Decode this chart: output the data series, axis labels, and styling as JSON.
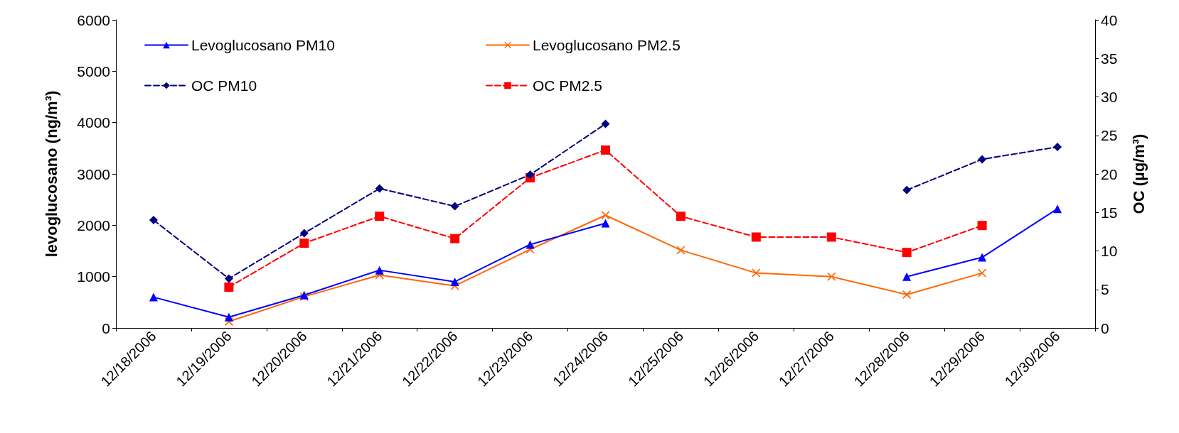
{
  "chart_data": {
    "type": "line",
    "ylabel": "levoglucosano (ng/m³)",
    "y2label": "OC (µg/m³)",
    "categories": [
      "12/18/2006",
      "12/19/2006",
      "12/20/2006",
      "12/21/2006",
      "12/22/2006",
      "12/23/2006",
      "12/24/2006",
      "12/25/2006",
      "12/26/2006",
      "12/27/2006",
      "12/28/2006",
      "12/29/2006",
      "12/30/2006"
    ],
    "ylim": [
      0,
      6000
    ],
    "yticks": [
      0,
      1000,
      2000,
      3000,
      4000,
      5000,
      6000
    ],
    "y2lim": [
      0,
      40
    ],
    "y2ticks": [
      0,
      5,
      10,
      15,
      20,
      25,
      30,
      35,
      40
    ],
    "grid": false,
    "legend": "top left",
    "series": [
      {
        "name": "Levoglucosano PM10",
        "color": "#0000ff",
        "marker": "triangle",
        "line_style": "solid",
        "values": [
          600,
          210,
          640,
          1125,
          900,
          1625,
          2040,
          null,
          null,
          null,
          1000,
          1375,
          2320
        ]
      },
      {
        "name": "Levoglucosano PM2.5",
        "color": "#ff6600",
        "marker": "cross",
        "line_style": "solid",
        "values": [
          null,
          125,
          610,
          1030,
          820,
          1530,
          2195,
          1515,
          1070,
          1000,
          650,
          1070,
          null
        ]
      },
      {
        "name": "OC PM10",
        "color": "#000080",
        "marker": "diamond",
        "line_style": "dashed",
        "axis": "y2",
        "values": [
          14,
          6.4,
          12.3,
          18.1,
          15.8,
          19.9,
          26.5,
          null,
          null,
          null,
          17.9,
          21.9,
          23.5
        ]
      },
      {
        "name": "OC PM2.5",
        "color": "#ff0000",
        "marker": "square",
        "line_style": "dashed",
        "axis": "y2",
        "values": [
          null,
          5.3,
          11,
          14.5,
          11.6,
          19.5,
          23.1,
          14.5,
          11.8,
          11.8,
          9.8,
          13.3,
          null
        ]
      }
    ]
  }
}
